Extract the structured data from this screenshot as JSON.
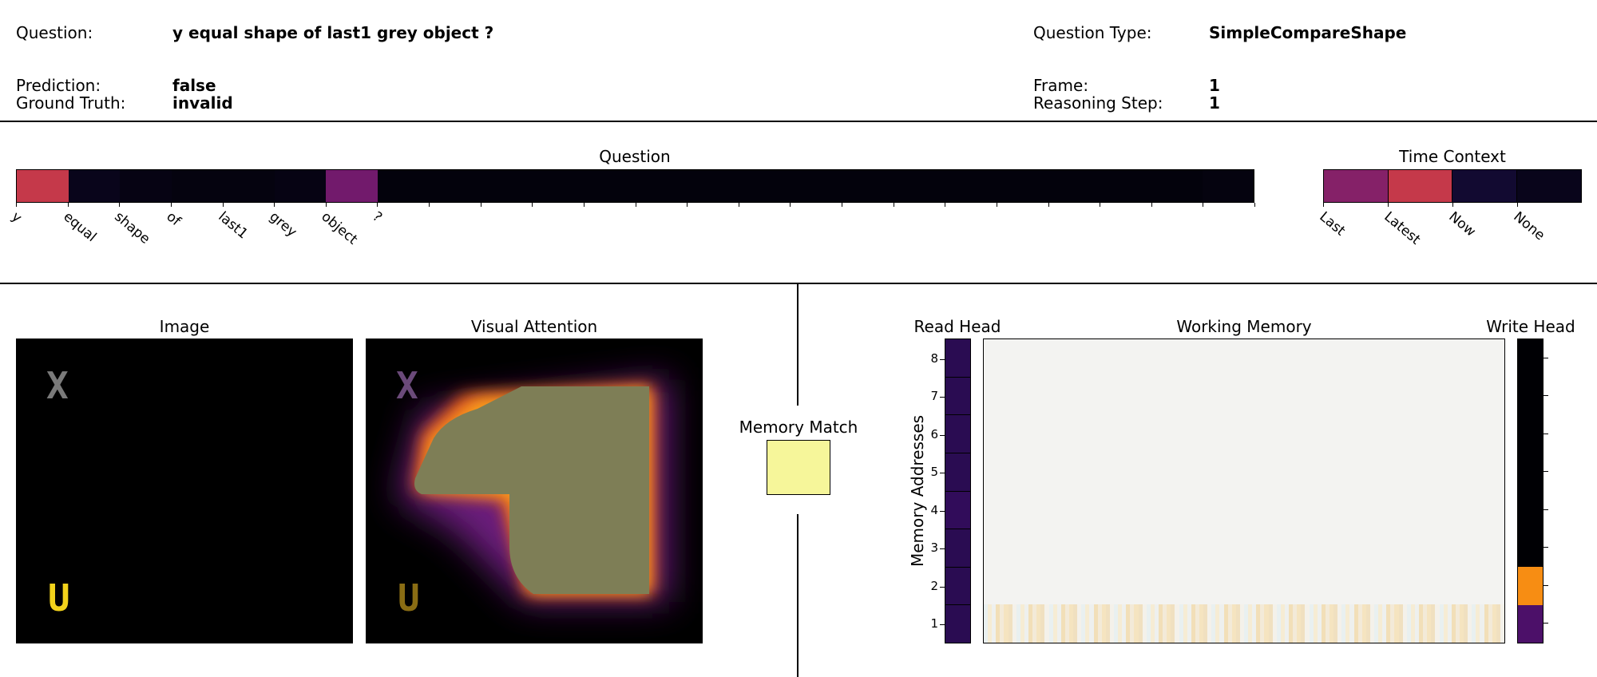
{
  "header": {
    "question_label": "Question:",
    "question_value": "y equal shape of last1 grey object ?",
    "prediction_label": "Prediction:",
    "prediction_value": "false",
    "ground_truth_label": "Ground Truth:",
    "ground_truth_value": "invalid",
    "question_type_label": "Question Type:",
    "question_type_value": "SimpleCompareShape",
    "frame_label": "Frame:",
    "frame_value": "1",
    "reasoning_step_label": "Reasoning Step:",
    "reasoning_step_value": "1"
  },
  "question_panel": {
    "title": "Question",
    "tokens": [
      "y",
      "equal",
      "shape",
      "of",
      "last1",
      "grey",
      "object",
      "?"
    ],
    "slot_count": 24,
    "attention": [
      0.62,
      0.06,
      0.04,
      0.03,
      0.03,
      0.04,
      0.4,
      0.02,
      0.02,
      0.02,
      0.02,
      0.02,
      0.02,
      0.02,
      0.02,
      0.02,
      0.02,
      0.02,
      0.02,
      0.02,
      0.02,
      0.02,
      0.02,
      0.03
    ]
  },
  "time_context": {
    "title": "Time Context",
    "labels": [
      "Last",
      "Latest",
      "Now",
      "None"
    ],
    "weights": [
      0.45,
      0.62,
      0.12,
      0.06
    ]
  },
  "image_panel": {
    "title": "Image",
    "objects": [
      {
        "glyph": "X",
        "color": "#7a7a7a"
      },
      {
        "glyph": "U",
        "color": "#f2d21b"
      }
    ]
  },
  "attention_panel": {
    "title": "Visual Attention",
    "objects": [
      {
        "glyph": "X",
        "color": "#6b4a7a"
      },
      {
        "glyph": "U",
        "color": "#8a6d14"
      }
    ]
  },
  "memory_match": {
    "title": "Memory Match",
    "color": "#f6f69a"
  },
  "read_head": {
    "title": "Read Head",
    "weights": [
      0.1,
      0.1,
      0.1,
      0.12,
      0.1,
      0.1,
      0.1,
      0.1
    ]
  },
  "working_memory": {
    "title": "Working Memory",
    "y_axis_label": "Memory Addresses",
    "address_ticks": [
      "1",
      "2",
      "3",
      "4",
      "5",
      "6",
      "7",
      "8"
    ],
    "background_color": "#f3f3f1"
  },
  "write_head": {
    "title": "Write Head",
    "weights": [
      0.0,
      0.0,
      0.0,
      0.0,
      0.0,
      0.0,
      0.3,
      0.85
    ]
  },
  "colors": {
    "inferno_low": "#000004",
    "inferno_purple": "#5c1a7a",
    "inferno_magenta": "#a83264",
    "inferno_orange": "#f98f10",
    "inferno_yellow": "#fbfda2"
  }
}
